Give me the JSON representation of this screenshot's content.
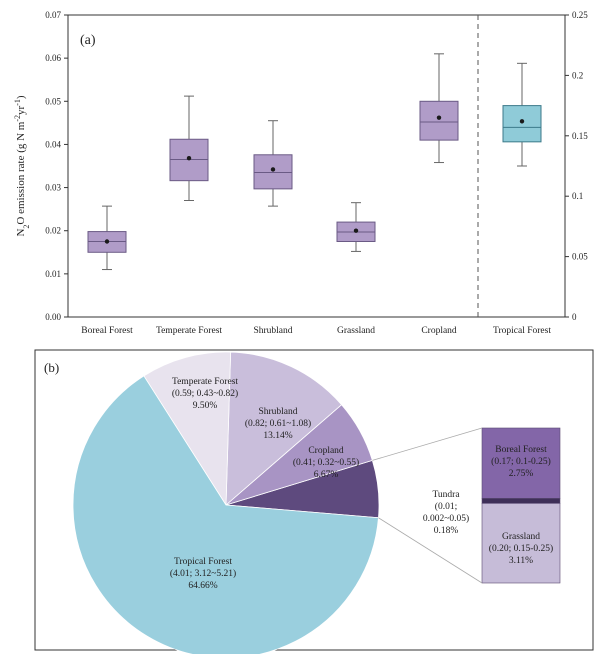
{
  "chart_data": [
    {
      "type": "box",
      "panel_label": "(a)",
      "ylabel": "N₂O emission rate (g N m⁻²yr⁻¹)",
      "ylim": [
        0,
        0.07
      ],
      "y_ticks": [
        "0.00",
        "0.01",
        "0.02",
        "0.03",
        "0.04",
        "0.05",
        "0.06",
        "0.07"
      ],
      "y2lim": [
        0,
        0.25
      ],
      "y2_ticks": [
        "0",
        "0.05",
        "0.1",
        "0.15",
        "0.2",
        "0.25"
      ],
      "categories": [
        "Boreal Forest",
        "Temperate Forest",
        "Shrubland",
        "Grassland",
        "Cropland",
        "Tropical Forest"
      ],
      "boxes": [
        {
          "min": 0.011,
          "q1": 0.015,
          "median": 0.0175,
          "q3": 0.0198,
          "max": 0.0257,
          "mean": 0.0175,
          "axis": "left"
        },
        {
          "min": 0.027,
          "q1": 0.0316,
          "median": 0.0365,
          "q3": 0.0412,
          "max": 0.0512,
          "mean": 0.0368,
          "axis": "left"
        },
        {
          "min": 0.0257,
          "q1": 0.0297,
          "median": 0.0335,
          "q3": 0.0376,
          "max": 0.0455,
          "mean": 0.0342,
          "axis": "left"
        },
        {
          "min": 0.0152,
          "q1": 0.0175,
          "median": 0.0197,
          "q3": 0.022,
          "max": 0.0265,
          "mean": 0.02,
          "axis": "left"
        },
        {
          "min": 0.0358,
          "q1": 0.041,
          "median": 0.0452,
          "q3": 0.05,
          "max": 0.061,
          "mean": 0.0462,
          "axis": "left"
        },
        {
          "min": 0.125,
          "q1": 0.145,
          "median": 0.157,
          "q3": 0.175,
          "max": 0.21,
          "mean": 0.162,
          "axis": "right"
        }
      ],
      "colors": {
        "box": "#b09cc8",
        "box_stroke": "#6a5a85",
        "tropical_box": "#8fcbd8",
        "tropical_stroke": "#3c7a8a"
      }
    },
    {
      "type": "pie",
      "panel_label": "(b)",
      "slices": [
        {
          "name": "Tropical Forest",
          "mean": 4.01,
          "range": "3.12~5.21",
          "percent": 64.66,
          "color": "#9acfde"
        },
        {
          "name": "Temperate Forest",
          "mean": 0.59,
          "range": "0.43~0.82",
          "percent": 9.5,
          "color": "#e8e3ee"
        },
        {
          "name": "Shrubland",
          "mean": 0.82,
          "range": "0.61~1.08",
          "percent": 13.14,
          "color": "#c9bedb"
        },
        {
          "name": "Cropland",
          "mean": 0.41,
          "range": "0.32~0.55",
          "percent": 6.67,
          "color": "#a894c4"
        },
        {
          "name": "Tundra + Boreal Forest + Grassland",
          "percent": 6.04,
          "color": "#5e4a7e"
        }
      ],
      "breakout": [
        {
          "name": "Boeal Forest",
          "mean": 0.17,
          "range": "0.1~0.25",
          "percent": 2.75,
          "color": "#8366a8"
        },
        {
          "name": "Tundra",
          "mean": 0.01,
          "range": "0.002~0.05",
          "percent": 0.18,
          "color": "#3e2f58"
        },
        {
          "name": "Grassland",
          "mean": 0.2,
          "range": "0.15~0.25",
          "percent": 3.11,
          "color": "#c6bcd8"
        }
      ]
    }
  ],
  "labels": {
    "boreal": {
      "l1": "Boreal Forest",
      "l2": "(0.17; 0.1-0.25)",
      "l3": "2.75%"
    },
    "grass": {
      "l1": "Grassland",
      "l2": "(0.20; 0.15-0.25)",
      "l3": "3.11%"
    },
    "tundra": {
      "l1": "Tundra",
      "l2": "(0.01;",
      "l3": "0.002~0.05)",
      "l4": "0.18%"
    },
    "tropical": {
      "l1": "Tropical Forest",
      "l2": "(4.01; 3.12~5.21)",
      "l3": "64.66%"
    },
    "temperate": {
      "l1": "Temperate Forest",
      "l2": "(0.59; 0.43~0.82)",
      "l3": "9.50%"
    },
    "shrub": {
      "l1": "Shrubland",
      "l2": "(0.82; 0.61~1.08)",
      "l3": "13.14%"
    },
    "crop": {
      "l1": "Cropland",
      "l2": "(0.41; 0.32~0.55)",
      "l3": "6.67%"
    }
  }
}
